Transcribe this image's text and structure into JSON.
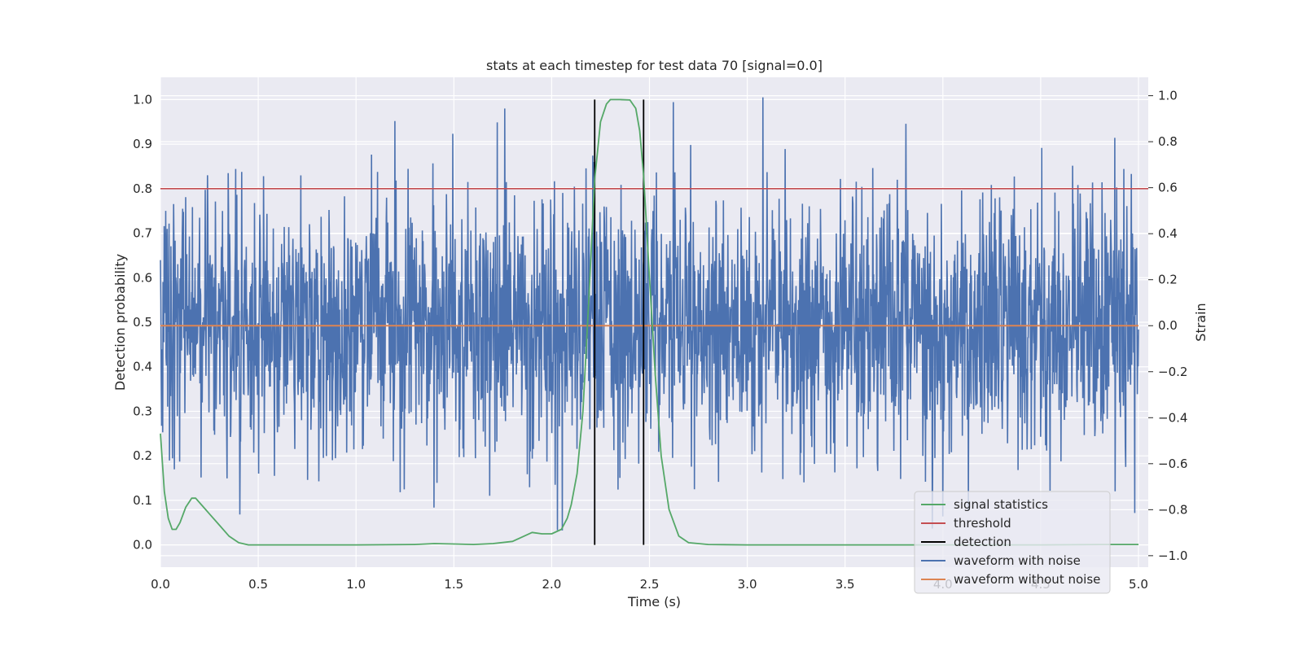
{
  "chart_data": {
    "type": "line",
    "title": "stats at each timestep for test data 70 [signal=0.0]",
    "xlabel": "Time (s)",
    "ylabel": "Detection probability",
    "y2label": "Strain",
    "xlim": [
      0.0,
      5.05
    ],
    "ylim": [
      -0.05,
      1.05
    ],
    "y2lim": [
      -1.05,
      1.08
    ],
    "xticks": [
      "0.0",
      "0.5",
      "1.0",
      "1.5",
      "2.0",
      "2.5",
      "3.0",
      "3.5",
      "4.0",
      "4.5",
      "5.0"
    ],
    "yticks": [
      "0.0",
      "0.1",
      "0.2",
      "0.3",
      "0.4",
      "0.5",
      "0.6",
      "0.7",
      "0.8",
      "0.9",
      "1.0"
    ],
    "y2ticks": [
      "−1.0",
      "−0.8",
      "−0.6",
      "−0.4",
      "−0.2",
      "0.0",
      "0.2",
      "0.4",
      "0.6",
      "0.8",
      "1.0"
    ],
    "grid": true,
    "legend_position": "lower-right",
    "series": [
      {
        "name": "signal statistics",
        "axis": "left",
        "color": "#55a868",
        "x": [
          0.0,
          0.02,
          0.04,
          0.06,
          0.08,
          0.1,
          0.13,
          0.16,
          0.18,
          0.21,
          0.25,
          0.3,
          0.35,
          0.4,
          0.45,
          0.5,
          0.8,
          1.0,
          1.3,
          1.4,
          1.5,
          1.6,
          1.7,
          1.8,
          1.85,
          1.9,
          1.95,
          2.0,
          2.05,
          2.08,
          2.1,
          2.13,
          2.16,
          2.19,
          2.22,
          2.25,
          2.28,
          2.3,
          2.35,
          2.4,
          2.43,
          2.45,
          2.47,
          2.5,
          2.53,
          2.56,
          2.6,
          2.65,
          2.7,
          2.8,
          3.0,
          3.5,
          4.0,
          4.5,
          4.8,
          5.0
        ],
        "values": [
          0.25,
          0.12,
          0.06,
          0.035,
          0.035,
          0.05,
          0.085,
          0.105,
          0.105,
          0.09,
          0.07,
          0.045,
          0.02,
          0.005,
          0.0,
          0.0,
          0.0,
          0.0,
          0.001,
          0.003,
          0.002,
          0.001,
          0.003,
          0.008,
          0.018,
          0.028,
          0.025,
          0.025,
          0.035,
          0.06,
          0.09,
          0.16,
          0.3,
          0.55,
          0.82,
          0.95,
          0.99,
          1.0,
          1.0,
          0.999,
          0.98,
          0.93,
          0.83,
          0.6,
          0.38,
          0.2,
          0.08,
          0.02,
          0.005,
          0.001,
          0.0,
          0.0,
          0.0,
          0.0,
          0.001,
          0.001
        ]
      },
      {
        "name": "threshold",
        "axis": "left",
        "color": "#c44e52",
        "x": [
          0.0,
          5.05
        ],
        "values": [
          0.8,
          0.8
        ]
      },
      {
        "name": "detection",
        "axis": "left",
        "color": "#000000",
        "x": [
          2.22,
          2.47
        ],
        "values": [
          1.0,
          1.0
        ]
      },
      {
        "name": "waveform with noise",
        "axis": "right",
        "color": "#4c72b0",
        "amplitude_range": [
          -0.92,
          1.0
        ]
      },
      {
        "name": "waveform without noise",
        "axis": "right",
        "color": "#dd8452",
        "x": [
          0.0,
          5.0
        ],
        "values": [
          0.0,
          0.0
        ]
      }
    ]
  }
}
